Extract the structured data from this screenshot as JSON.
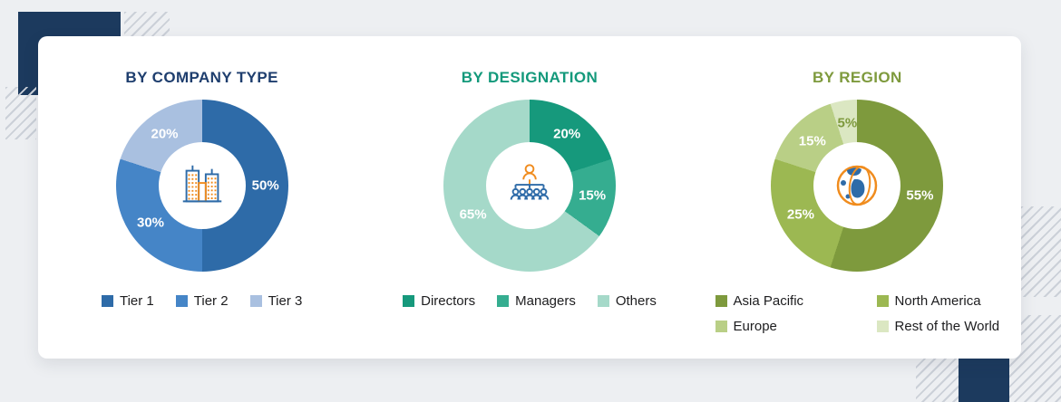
{
  "page": {
    "background_color": "#edeff2",
    "accent_navy": "#1c3a5e",
    "hatch_color": "#cbd0d8",
    "icon_blue": "#2e6ba8",
    "icon_orange": "#f08c1e"
  },
  "chart_data": [
    {
      "type": "pie",
      "title": "BY COMPANY TYPE",
      "title_color": "#1e3e6e",
      "icon": "buildings-icon",
      "legend_position": "bottom",
      "legend_columns": 1,
      "segments": [
        {
          "label": "Tier 1",
          "value": 50,
          "color": "#2e6ba8",
          "label_color": "#ffffff"
        },
        {
          "label": "Tier 2",
          "value": 30,
          "color": "#4585c7",
          "label_color": "#ffffff"
        },
        {
          "label": "Tier 3",
          "value": 20,
          "color": "#a9c0e0",
          "label_color": "#ffffff"
        }
      ]
    },
    {
      "type": "pie",
      "title": "BY DESIGNATION",
      "title_color": "#13997b",
      "icon": "org-chart-icon",
      "legend_position": "bottom",
      "legend_columns": 1,
      "segments": [
        {
          "label": "Directors",
          "value": 20,
          "color": "#16997c",
          "label_color": "#ffffff"
        },
        {
          "label": "Managers",
          "value": 15,
          "color": "#35ad90",
          "label_color": "#ffffff"
        },
        {
          "label": "Others",
          "value": 65,
          "color": "#a5d9c9",
          "label_color": "#ffffff"
        }
      ]
    },
    {
      "type": "pie",
      "title": "BY REGION",
      "title_color": "#7e9a3d",
      "icon": "globe-icon",
      "legend_position": "bottom",
      "legend_columns": 2,
      "segments": [
        {
          "label": "Asia Pacific",
          "value": 55,
          "color": "#7e9a3d",
          "label_color": "#ffffff"
        },
        {
          "label": "North America",
          "value": 25,
          "color": "#9cb852",
          "label_color": "#ffffff"
        },
        {
          "label": "Europe",
          "value": 15,
          "color": "#b9cf86",
          "label_color": "#ffffff"
        },
        {
          "label": "Rest of the World",
          "value": 5,
          "color": "#dbe7c2",
          "label_color": "#7e9a3d"
        }
      ]
    }
  ]
}
